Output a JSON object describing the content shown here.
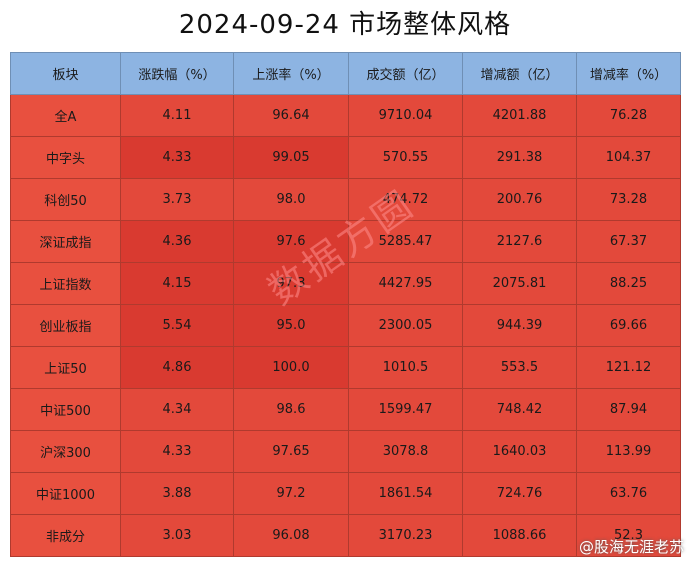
{
  "header": {
    "title": "2024-09-24 市场整体风格"
  },
  "table": {
    "columns": [
      "板块",
      "涨跌幅（%）",
      "上涨率（%）",
      "成交额（亿）",
      "增减额（亿）",
      "增减率（%）"
    ],
    "rows": [
      [
        "全A",
        "4.11",
        "96.64",
        "9710.04",
        "4201.88",
        "76.28"
      ],
      [
        "中字头",
        "4.33",
        "99.05",
        "570.55",
        "291.38",
        "104.37"
      ],
      [
        "科创50",
        "3.73",
        "98.0",
        "474.72",
        "200.76",
        "73.28"
      ],
      [
        "深证成指",
        "4.36",
        "97.6",
        "5285.47",
        "2127.6",
        "67.37"
      ],
      [
        "上证指数",
        "4.15",
        "97.3",
        "4427.95",
        "2075.81",
        "88.25"
      ],
      [
        "创业板指",
        "5.54",
        "95.0",
        "2300.05",
        "944.39",
        "69.66"
      ],
      [
        "上证50",
        "4.86",
        "100.0",
        "1010.5",
        "553.5",
        "121.12"
      ],
      [
        "中证500",
        "4.34",
        "98.6",
        "1599.47",
        "748.42",
        "87.94"
      ],
      [
        "沪深300",
        "4.33",
        "97.65",
        "3078.8",
        "1640.03",
        "113.99"
      ],
      [
        "中证1000",
        "3.88",
        "97.2",
        "1861.54",
        "724.76",
        "63.76"
      ],
      [
        "非成分",
        "3.03",
        "96.08",
        "3170.23",
        "1088.66",
        "52.3"
      ]
    ]
  },
  "watermark": "数据方圆",
  "credit": "@股海无涯老苏"
}
